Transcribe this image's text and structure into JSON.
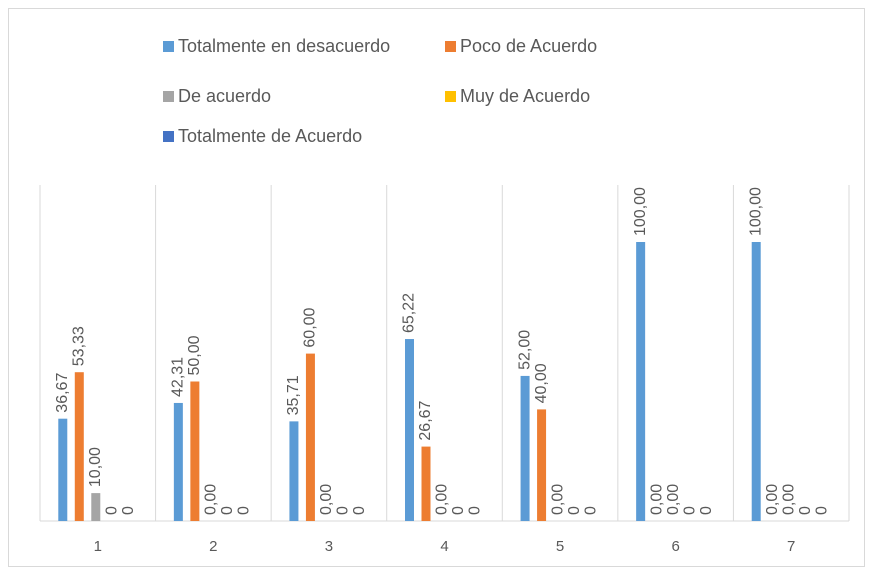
{
  "chart_data": {
    "type": "bar",
    "categories": [
      "1",
      "2",
      "3",
      "4",
      "5",
      "6",
      "7"
    ],
    "series": [
      {
        "name": "Totalmente en desacuerdo",
        "color": "#5b9bd5",
        "values": [
          36.67,
          42.31,
          35.71,
          65.22,
          52.0,
          100,
          100
        ],
        "value_labels": [
          "36,67",
          "42,31",
          "35,71",
          "65,22",
          "52,00",
          "100,00",
          "100,00"
        ]
      },
      {
        "name": "Poco de Acuerdo",
        "color": "#ed7d31",
        "values": [
          53.33,
          50.0,
          60.0,
          26.67,
          40.0,
          0,
          0
        ],
        "value_labels": [
          "53,33",
          "50,00",
          "60,00",
          "26,67",
          "40,00",
          "0,00",
          "0,00"
        ]
      },
      {
        "name": "De acuerdo",
        "color": "#a5a5a5",
        "values": [
          10.0,
          0,
          0,
          0,
          0,
          0,
          0
        ],
        "value_labels": [
          "10,00",
          "0,00",
          "0,00",
          "0,00",
          "0,00",
          "0,00",
          "0,00"
        ]
      },
      {
        "name": "Muy de Acuerdo",
        "color": "#ffc000",
        "values": [
          0,
          0,
          0,
          0,
          0,
          0,
          0
        ]
      },
      {
        "name": "Totalmente de Acuerdo",
        "color": "#4472c4",
        "values": [
          0,
          0,
          0,
          0,
          0,
          0,
          0
        ]
      }
    ],
    "legend": "top"
  }
}
